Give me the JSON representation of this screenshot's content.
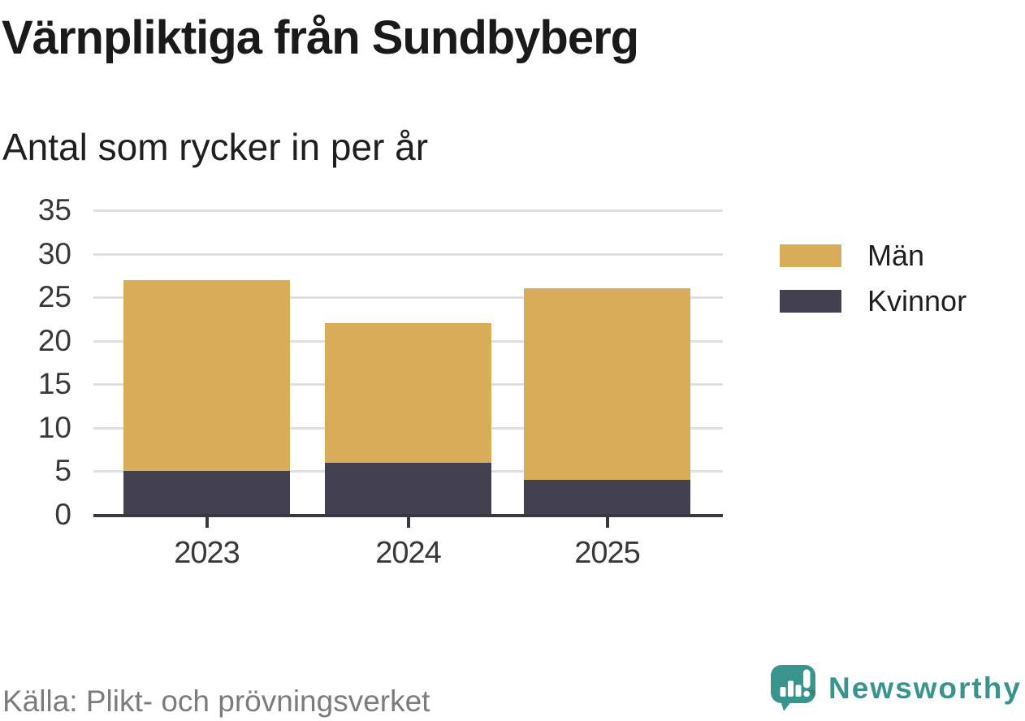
{
  "title": "Värnpliktiga från Sundbyberg",
  "subtitle": "Antal som rycker in per år",
  "source": "Källa: Plikt- och prövningsverket",
  "brand": {
    "name": "Newsworthy",
    "teal": "#3a948e"
  },
  "chart_data": {
    "type": "bar",
    "stacked": true,
    "title": "Värnpliktiga från Sundbyberg",
    "subtitle": "Antal som rycker in per år",
    "categories": [
      "2023",
      "2024",
      "2025"
    ],
    "series": [
      {
        "name": "Män",
        "color": "#d9ac5a",
        "values": [
          22,
          16,
          22
        ]
      },
      {
        "name": "Kvinnor",
        "color": "#434050",
        "values": [
          5,
          6,
          4
        ]
      }
    ],
    "stack_order_bottom_to_top": [
      "Kvinnor",
      "Män"
    ],
    "ylim": [
      0,
      35
    ],
    "yticks": [
      0,
      5,
      10,
      15,
      20,
      25,
      30,
      35
    ],
    "grid": "horizontal-only",
    "legend_position": "right",
    "xlabel": "",
    "ylabel": "",
    "gridline_color": "#e0e0e0",
    "axis_color": "#3a3742"
  }
}
